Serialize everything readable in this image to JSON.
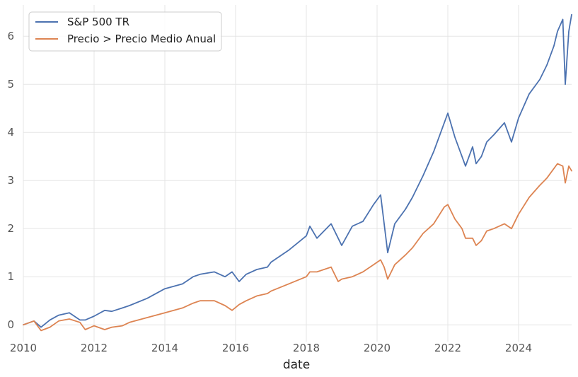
{
  "chart_data": {
    "type": "line",
    "title": "",
    "xlabel": "date",
    "ylabel": "",
    "xlim": [
      2010.0,
      2025.5
    ],
    "ylim": [
      -0.35,
      6.65
    ],
    "x_ticks": [
      2010,
      2012,
      2014,
      2016,
      2018,
      2020,
      2022,
      2024
    ],
    "x_tick_labels": [
      "2010",
      "2012",
      "2014",
      "2016",
      "2018",
      "2020",
      "2022",
      "2024"
    ],
    "y_ticks": [
      0,
      1,
      2,
      3,
      4,
      5,
      6
    ],
    "y_tick_labels": [
      "0",
      "1",
      "2",
      "3",
      "4",
      "5",
      "6"
    ],
    "grid": true,
    "legend_position": "top-left",
    "series": [
      {
        "name": "S&P 500 TR",
        "color": "#4c72b0",
        "x": [
          2010.0,
          2010.3,
          2010.5,
          2010.75,
          2011.0,
          2011.3,
          2011.6,
          2011.75,
          2012.0,
          2012.3,
          2012.5,
          2012.8,
          2013.0,
          2013.5,
          2014.0,
          2014.5,
          2014.8,
          2015.0,
          2015.4,
          2015.7,
          2015.9,
          2016.1,
          2016.3,
          2016.6,
          2016.9,
          2017.0,
          2017.5,
          2018.0,
          2018.1,
          2018.3,
          2018.7,
          2018.9,
          2019.0,
          2019.3,
          2019.6,
          2019.9,
          2020.1,
          2020.2,
          2020.3,
          2020.5,
          2020.8,
          2021.0,
          2021.3,
          2021.6,
          2021.9,
          2022.0,
          2022.2,
          2022.4,
          2022.5,
          2022.7,
          2022.8,
          2022.95,
          2023.1,
          2023.3,
          2023.6,
          2023.8,
          2024.0,
          2024.3,
          2024.6,
          2024.8,
          2025.0,
          2025.1,
          2025.25,
          2025.32,
          2025.42,
          2025.5
        ],
        "values": [
          0.0,
          0.08,
          -0.05,
          0.1,
          0.2,
          0.25,
          0.1,
          0.1,
          0.18,
          0.3,
          0.28,
          0.35,
          0.4,
          0.55,
          0.75,
          0.85,
          1.0,
          1.05,
          1.1,
          1.0,
          1.1,
          0.9,
          1.05,
          1.15,
          1.2,
          1.3,
          1.55,
          1.85,
          2.05,
          1.8,
          2.1,
          1.8,
          1.65,
          2.05,
          2.15,
          2.5,
          2.7,
          2.1,
          1.5,
          2.1,
          2.4,
          2.65,
          3.1,
          3.6,
          4.2,
          4.4,
          3.9,
          3.5,
          3.3,
          3.7,
          3.35,
          3.5,
          3.8,
          3.95,
          4.2,
          3.8,
          4.3,
          4.8,
          5.1,
          5.4,
          5.8,
          6.1,
          6.35,
          5.0,
          6.1,
          6.45
        ]
      },
      {
        "name": "Precio > Precio Medio Anual",
        "color": "#dd8452",
        "x": [
          2010.0,
          2010.3,
          2010.5,
          2010.75,
          2011.0,
          2011.3,
          2011.6,
          2011.75,
          2012.0,
          2012.3,
          2012.5,
          2012.8,
          2013.0,
          2013.5,
          2014.0,
          2014.5,
          2014.8,
          2015.0,
          2015.4,
          2015.7,
          2015.9,
          2016.1,
          2016.3,
          2016.6,
          2016.9,
          2017.0,
          2017.5,
          2018.0,
          2018.1,
          2018.3,
          2018.7,
          2018.9,
          2019.0,
          2019.3,
          2019.6,
          2019.9,
          2020.1,
          2020.2,
          2020.3,
          2020.5,
          2020.8,
          2021.0,
          2021.3,
          2021.6,
          2021.9,
          2022.0,
          2022.2,
          2022.4,
          2022.5,
          2022.7,
          2022.8,
          2022.95,
          2023.1,
          2023.3,
          2023.6,
          2023.8,
          2024.0,
          2024.3,
          2024.6,
          2024.8,
          2025.0,
          2025.1,
          2025.25,
          2025.32,
          2025.42,
          2025.5
        ],
        "values": [
          0.0,
          0.08,
          -0.12,
          -0.05,
          0.08,
          0.12,
          0.05,
          -0.1,
          -0.02,
          -0.1,
          -0.05,
          -0.02,
          0.05,
          0.15,
          0.25,
          0.35,
          0.45,
          0.5,
          0.5,
          0.4,
          0.3,
          0.42,
          0.5,
          0.6,
          0.65,
          0.7,
          0.85,
          1.0,
          1.1,
          1.1,
          1.2,
          0.9,
          0.95,
          1.0,
          1.1,
          1.25,
          1.35,
          1.2,
          0.95,
          1.25,
          1.45,
          1.6,
          1.9,
          2.1,
          2.45,
          2.5,
          2.2,
          2.0,
          1.8,
          1.8,
          1.65,
          1.75,
          1.95,
          2.0,
          2.1,
          2.0,
          2.3,
          2.65,
          2.9,
          3.05,
          3.25,
          3.35,
          3.3,
          2.95,
          3.3,
          3.2
        ]
      }
    ]
  }
}
